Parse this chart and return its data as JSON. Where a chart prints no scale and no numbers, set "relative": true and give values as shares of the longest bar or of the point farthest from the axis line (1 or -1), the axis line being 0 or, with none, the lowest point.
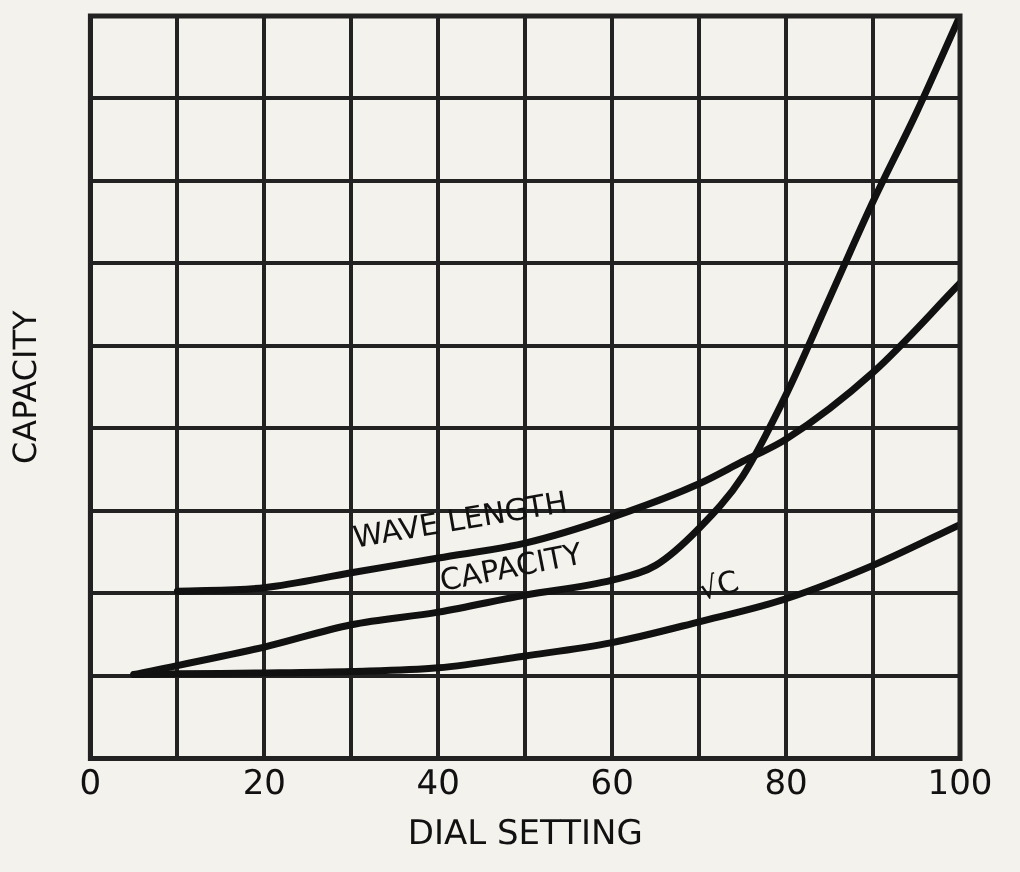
{
  "chart_data": {
    "type": "line",
    "xlabel": "DIAL SETTING",
    "ylabel": "CAPACITY",
    "relative": true,
    "xlim": [
      0,
      100
    ],
    "xticks": [
      0,
      {
        "value": 10,
        "label": null
      },
      20,
      {
        "value": 30,
        "label": null
      },
      40,
      {
        "value": 50,
        "label": null
      },
      60,
      {
        "value": 70,
        "label": null
      },
      80,
      {
        "value": 90,
        "label": null
      },
      100
    ],
    "grid": true,
    "legend": false,
    "marker": "none",
    "line_style": "solid",
    "series": [
      {
        "name": "WAVE LENGTH",
        "color": "#111111",
        "x": [
          10,
          20,
          30,
          40,
          50,
          60,
          70,
          75,
          80,
          90,
          100
        ],
        "values": [
          0.225,
          0.23,
          0.25,
          0.27,
          0.29,
          0.325,
          0.37,
          0.4,
          0.43,
          0.52,
          0.64
        ]
      },
      {
        "name": "CAPACITY",
        "color": "#111111",
        "x": [
          5,
          20,
          30,
          40,
          50,
          60,
          65,
          70,
          75,
          80,
          85,
          90,
          95,
          100
        ],
        "values": [
          0.113,
          0.15,
          0.18,
          0.197,
          0.22,
          0.24,
          0.26,
          0.31,
          0.38,
          0.49,
          0.62,
          0.75,
          0.87,
          1
        ]
      },
      {
        "name": "√C",
        "color": "#111111",
        "x": [
          5,
          10,
          20,
          30,
          40,
          50,
          60,
          70,
          80,
          90,
          100
        ],
        "values": [
          0.113,
          0.114,
          0.115,
          0.117,
          0.122,
          0.138,
          0.156,
          0.184,
          0.215,
          0.26,
          0.315
        ]
      }
    ]
  }
}
